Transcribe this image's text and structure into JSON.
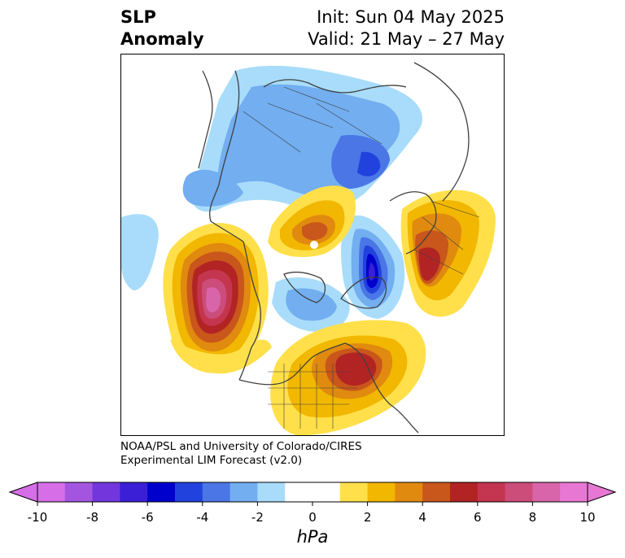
{
  "title": {
    "line1": "SLP",
    "line2": "Anomaly"
  },
  "subtitle": {
    "init": "Init: Sun 04 May 2025",
    "valid": "Valid: 21 May – 27 May"
  },
  "credit": {
    "line1": "NOAA/PSL and University of Colorado/CIRES",
    "line2": "Experimental LIM Forecast (v2.0)"
  },
  "colorbar": {
    "unit": "hPa",
    "ticks": [
      "-10",
      "-8",
      "-6",
      "-4",
      "-2",
      "0",
      "2",
      "4",
      "6",
      "8",
      "10"
    ],
    "colors": [
      "#d66ee8",
      "#a455e0",
      "#7236dc",
      "#3a1fd6",
      "#0000cc",
      "#2142dc",
      "#4a76e6",
      "#72aef0",
      "#a8dcfa",
      "#ffffff",
      "#ffffff",
      "#ffe04a",
      "#f2b700",
      "#e08a10",
      "#c9561b",
      "#b22424",
      "#c4354f",
      "#cc4d7a",
      "#d865a9",
      "#e877d4"
    ]
  },
  "map": {
    "colors": {
      "blue_lightest": "#a8dcfa",
      "blue_light": "#72aef0",
      "blue_mid": "#4a76e6",
      "blue_strong": "#2142dc",
      "blue_deep": "#0000cc",
      "violet": "#3a1fd6",
      "yellow": "#ffe04a",
      "gold": "#f2b700",
      "orange": "#e08a10",
      "orange_dark": "#c9561b",
      "red": "#b22424",
      "red_pink": "#c4354f",
      "rose": "#cc4d7a",
      "pink": "#d865a9",
      "magenta": "#e877d4",
      "coast": "#404040"
    }
  }
}
